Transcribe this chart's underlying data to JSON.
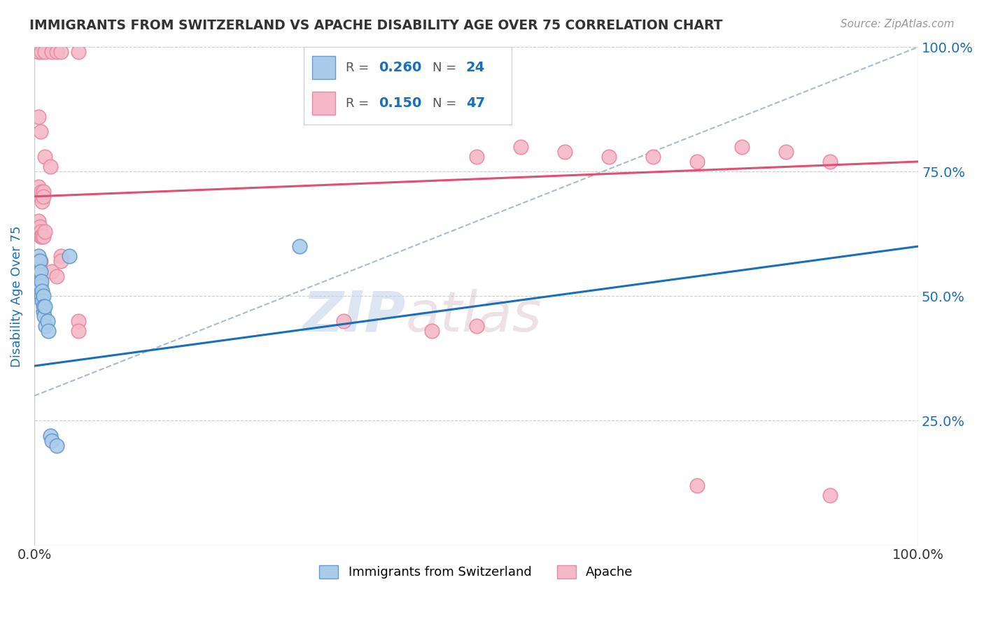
{
  "title": "IMMIGRANTS FROM SWITZERLAND VS APACHE DISABILITY AGE OVER 75 CORRELATION CHART",
  "ylabel": "Disability Age Over 75",
  "source": "Source: ZipAtlas.com",
  "watermark_zip": "ZIP",
  "watermark_atlas": "atlas",
  "x_min": 0.0,
  "x_max": 1.0,
  "y_min": 0.0,
  "y_max": 1.0,
  "blue_R": "0.260",
  "blue_N": "24",
  "pink_R": "0.150",
  "pink_N": "47",
  "blue_scatter": [
    [
      0.005,
      0.58
    ],
    [
      0.005,
      0.55
    ],
    [
      0.006,
      0.57
    ],
    [
      0.006,
      0.53
    ],
    [
      0.006,
      0.52
    ],
    [
      0.007,
      0.55
    ],
    [
      0.007,
      0.52
    ],
    [
      0.008,
      0.53
    ],
    [
      0.008,
      0.5
    ],
    [
      0.009,
      0.51
    ],
    [
      0.009,
      0.49
    ],
    [
      0.01,
      0.5
    ],
    [
      0.01,
      0.47
    ],
    [
      0.01,
      0.48
    ],
    [
      0.011,
      0.46
    ],
    [
      0.012,
      0.48
    ],
    [
      0.013,
      0.44
    ],
    [
      0.015,
      0.45
    ],
    [
      0.016,
      0.43
    ],
    [
      0.018,
      0.22
    ],
    [
      0.02,
      0.21
    ],
    [
      0.025,
      0.2
    ],
    [
      0.04,
      0.58
    ],
    [
      0.3,
      0.6
    ]
  ],
  "pink_scatter": [
    [
      0.005,
      0.99
    ],
    [
      0.008,
      0.99
    ],
    [
      0.012,
      0.99
    ],
    [
      0.02,
      0.99
    ],
    [
      0.025,
      0.99
    ],
    [
      0.03,
      0.99
    ],
    [
      0.05,
      0.99
    ],
    [
      0.005,
      0.86
    ],
    [
      0.007,
      0.83
    ],
    [
      0.012,
      0.78
    ],
    [
      0.018,
      0.76
    ],
    [
      0.005,
      0.72
    ],
    [
      0.007,
      0.7
    ],
    [
      0.008,
      0.71
    ],
    [
      0.009,
      0.69
    ],
    [
      0.01,
      0.71
    ],
    [
      0.01,
      0.7
    ],
    [
      0.005,
      0.65
    ],
    [
      0.006,
      0.64
    ],
    [
      0.007,
      0.63
    ],
    [
      0.007,
      0.62
    ],
    [
      0.008,
      0.62
    ],
    [
      0.009,
      0.62
    ],
    [
      0.01,
      0.62
    ],
    [
      0.012,
      0.63
    ],
    [
      0.005,
      0.57
    ],
    [
      0.007,
      0.57
    ],
    [
      0.02,
      0.55
    ],
    [
      0.025,
      0.54
    ],
    [
      0.03,
      0.58
    ],
    [
      0.03,
      0.57
    ],
    [
      0.05,
      0.45
    ],
    [
      0.5,
      0.78
    ],
    [
      0.55,
      0.8
    ],
    [
      0.6,
      0.79
    ],
    [
      0.65,
      0.78
    ],
    [
      0.7,
      0.78
    ],
    [
      0.75,
      0.77
    ],
    [
      0.8,
      0.8
    ],
    [
      0.85,
      0.79
    ],
    [
      0.05,
      0.43
    ],
    [
      0.35,
      0.45
    ],
    [
      0.75,
      0.12
    ],
    [
      0.9,
      0.1
    ],
    [
      0.45,
      0.43
    ],
    [
      0.5,
      0.44
    ],
    [
      0.9,
      0.77
    ]
  ],
  "blue_line_x": [
    0.0,
    1.0
  ],
  "blue_line_y": [
    0.36,
    0.6
  ],
  "pink_line_x": [
    0.0,
    1.0
  ],
  "pink_line_y": [
    0.7,
    0.77
  ],
  "gray_line_x": [
    0.0,
    1.0
  ],
  "gray_line_y": [
    0.3,
    1.0
  ],
  "blue_line_color": "#1a6fba",
  "pink_line_color": "#e05070",
  "gray_line_color": "#aabbcc",
  "scatter_blue_face": "#aaccea",
  "scatter_blue_edge": "#6699cc",
  "scatter_pink_face": "#f4b8c8",
  "scatter_pink_edge": "#e88aa0",
  "background_color": "#ffffff",
  "grid_color": "#cccccc",
  "title_color": "#333333",
  "source_color": "#999999",
  "axis_label_color": "#1a6fba",
  "tick_label_color_right": "#1a6fba",
  "legend_bottom": [
    {
      "label": "Immigrants from Switzerland",
      "color_face": "#aaccea",
      "color_edge": "#6699cc"
    },
    {
      "label": "Apache",
      "color_face": "#f4b8c8",
      "color_edge": "#e88aa0"
    }
  ]
}
